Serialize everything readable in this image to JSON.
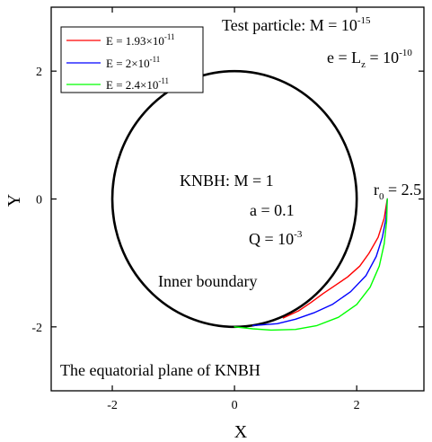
{
  "chart_data": {
    "type": "line",
    "title": "",
    "xlabel": "X",
    "ylabel": "Y",
    "xlim": [
      -3,
      3.1
    ],
    "ylim": [
      -3,
      3.0
    ],
    "xticks": [
      -2,
      0,
      2
    ],
    "yticks": [
      -2,
      0,
      2
    ],
    "xtick_labels": [
      "-2",
      "0",
      "2"
    ],
    "ytick_labels": [
      "-2",
      "0",
      "2"
    ],
    "grid": false,
    "legend_position": "top-left",
    "shapes": {
      "inner_boundary_circle": {
        "center": [
          0,
          0
        ],
        "radius": 2,
        "color": "#000000"
      }
    },
    "series": [
      {
        "name": "E = 1.93×10^-11",
        "label_base": "E = 1.93×10",
        "label_exp": "-11",
        "color": "#ff0000",
        "x": [
          2.5,
          2.45,
          2.35,
          2.2,
          2.05,
          1.85,
          1.65,
          1.45,
          1.25,
          1.05,
          0.8
        ],
        "y": [
          0.0,
          -0.3,
          -0.6,
          -0.85,
          -1.05,
          -1.22,
          -1.35,
          -1.48,
          -1.62,
          -1.75,
          -1.86
        ]
      },
      {
        "name": "E = 2×10^-11",
        "label_base": "E = 2×10",
        "label_exp": "-11",
        "color": "#0000ff",
        "x": [
          2.5,
          2.48,
          2.42,
          2.32,
          2.15,
          1.9,
          1.6,
          1.3,
          1.0,
          0.7,
          0.3
        ],
        "y": [
          0.0,
          -0.3,
          -0.6,
          -0.9,
          -1.2,
          -1.45,
          -1.65,
          -1.78,
          -1.88,
          -1.95,
          -1.98
        ]
      },
      {
        "name": "E = 2.4×10^-11",
        "label_base": "E = 2.4×10",
        "label_exp": "-11",
        "color": "#00ff00",
        "x": [
          2.5,
          2.49,
          2.45,
          2.37,
          2.22,
          2.0,
          1.7,
          1.35,
          1.0,
          0.6,
          0.3,
          0.0
        ],
        "y": [
          0.0,
          -0.35,
          -0.7,
          -1.05,
          -1.38,
          -1.65,
          -1.85,
          -1.98,
          -2.04,
          -2.05,
          -2.03,
          -2.0
        ]
      }
    ],
    "annotations": {
      "test_particle": {
        "base": "Test particle: M = 10",
        "exp": "-15"
      },
      "e_lz": {
        "pre": "e = L",
        "sub": "z",
        "mid": " = 10",
        "exp": "-10"
      },
      "r0": {
        "pre": "r",
        "sub": "0",
        "post": " = 2.5"
      },
      "knbh_m": "KNBH: M = 1",
      "knbh_a": "a = 0.1",
      "knbh_q": {
        "base": "Q = 10",
        "exp": "-3"
      },
      "inner_boundary": "Inner boundary",
      "equatorial_plane": "The equatorial plane of KNBH"
    }
  }
}
